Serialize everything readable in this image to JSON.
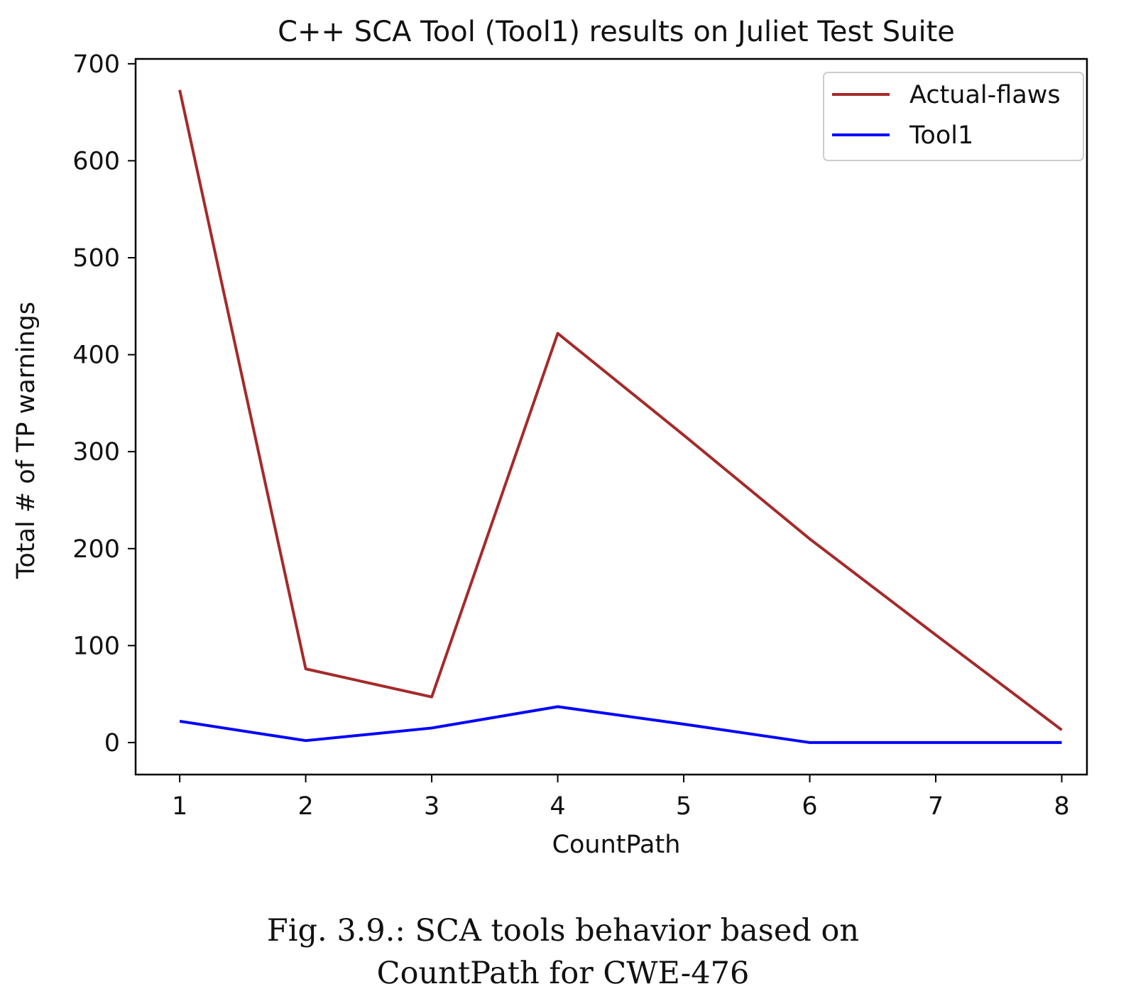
{
  "chart_data": {
    "type": "line",
    "title": "C++ SCA Tool (Tool1) results on Juliet Test Suite",
    "xlabel": "CountPath",
    "ylabel": "Total # of TP warnings",
    "x": [
      1,
      2,
      3,
      4,
      5,
      6,
      7,
      8
    ],
    "xticks": [
      1,
      2,
      3,
      4,
      5,
      6,
      7,
      8
    ],
    "yticks": [
      0,
      100,
      200,
      300,
      400,
      500,
      600,
      700
    ],
    "xlim": [
      0.65,
      8.2
    ],
    "ylim": [
      -33,
      705
    ],
    "grid": false,
    "legend_position": "top-right",
    "series": [
      {
        "name": "Actual-flaws",
        "color": "#a52a2a",
        "values": [
          673,
          76,
          47,
          422,
          317,
          210,
          111,
          13
        ]
      },
      {
        "name": "Tool1",
        "color": "#0000ff",
        "values": [
          22,
          2,
          15,
          37,
          19,
          0,
          0,
          0
        ]
      }
    ]
  },
  "caption": {
    "line1": "Fig. 3.9.: SCA tools behavior based on",
    "line2": "CountPath for CWE-476"
  }
}
